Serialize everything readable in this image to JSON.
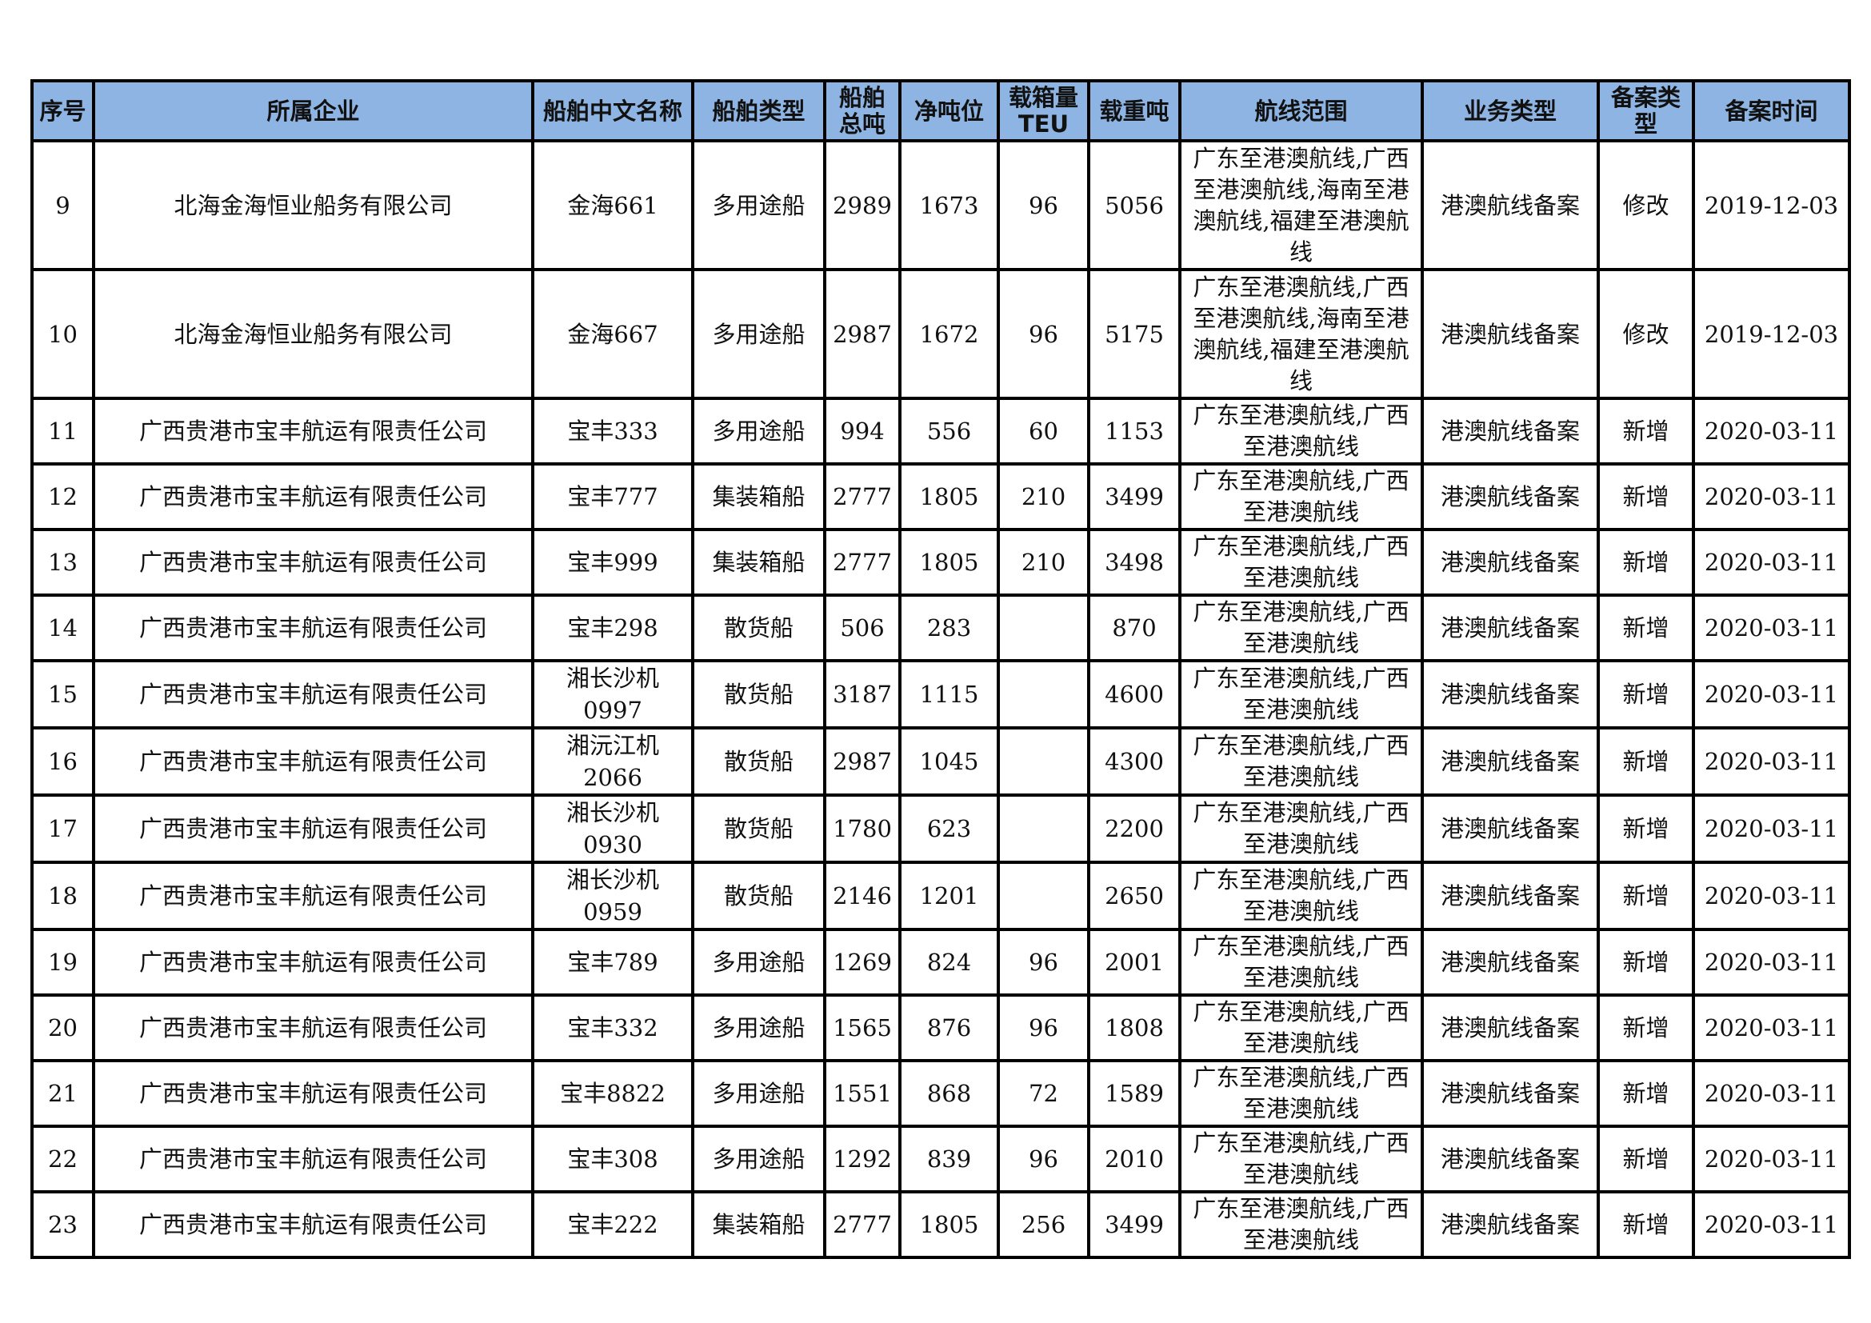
{
  "colors": {
    "header_bg": "#8db4e2",
    "border": "#000000"
  },
  "table": {
    "headers": [
      "序号",
      "所属企业",
      "船舶中文名称",
      "船舶类型",
      "船舶总吨",
      "净吨位",
      "载箱量TEU",
      "载重吨",
      "航线范围",
      "业务类型",
      "备案类型",
      "备案时间"
    ],
    "rows": [
      [
        "9",
        "北海金海恒业船务有限公司",
        "金海661",
        "多用途船",
        "2989",
        "1673",
        "96",
        "5056",
        "广东至港澳航线,广西至港澳航线,海南至港澳航线,福建至港澳航线",
        "港澳航线备案",
        "修改",
        "2019-12-03"
      ],
      [
        "10",
        "北海金海恒业船务有限公司",
        "金海667",
        "多用途船",
        "2987",
        "1672",
        "96",
        "5175",
        "广东至港澳航线,广西至港澳航线,海南至港澳航线,福建至港澳航线",
        "港澳航线备案",
        "修改",
        "2019-12-03"
      ],
      [
        "11",
        "广西贵港市宝丰航运有限责任公司",
        "宝丰333",
        "多用途船",
        "994",
        "556",
        "60",
        "1153",
        "广东至港澳航线,广西至港澳航线",
        "港澳航线备案",
        "新增",
        "2020-03-11"
      ],
      [
        "12",
        "广西贵港市宝丰航运有限责任公司",
        "宝丰777",
        "集装箱船",
        "2777",
        "1805",
        "210",
        "3499",
        "广东至港澳航线,广西至港澳航线",
        "港澳航线备案",
        "新增",
        "2020-03-11"
      ],
      [
        "13",
        "广西贵港市宝丰航运有限责任公司",
        "宝丰999",
        "集装箱船",
        "2777",
        "1805",
        "210",
        "3498",
        "广东至港澳航线,广西至港澳航线",
        "港澳航线备案",
        "新增",
        "2020-03-11"
      ],
      [
        "14",
        "广西贵港市宝丰航运有限责任公司",
        "宝丰298",
        "散货船",
        "506",
        "283",
        "",
        "870",
        "广东至港澳航线,广西至港澳航线",
        "港澳航线备案",
        "新增",
        "2020-03-11"
      ],
      [
        "15",
        "广西贵港市宝丰航运有限责任公司",
        "湘长沙机0997",
        "散货船",
        "3187",
        "1115",
        "",
        "4600",
        "广东至港澳航线,广西至港澳航线",
        "港澳航线备案",
        "新增",
        "2020-03-11"
      ],
      [
        "16",
        "广西贵港市宝丰航运有限责任公司",
        "湘沅江机2066",
        "散货船",
        "2987",
        "1045",
        "",
        "4300",
        "广东至港澳航线,广西至港澳航线",
        "港澳航线备案",
        "新增",
        "2020-03-11"
      ],
      [
        "17",
        "广西贵港市宝丰航运有限责任公司",
        "湘长沙机0930",
        "散货船",
        "1780",
        "623",
        "",
        "2200",
        "广东至港澳航线,广西至港澳航线",
        "港澳航线备案",
        "新增",
        "2020-03-11"
      ],
      [
        "18",
        "广西贵港市宝丰航运有限责任公司",
        "湘长沙机0959",
        "散货船",
        "2146",
        "1201",
        "",
        "2650",
        "广东至港澳航线,广西至港澳航线",
        "港澳航线备案",
        "新增",
        "2020-03-11"
      ],
      [
        "19",
        "广西贵港市宝丰航运有限责任公司",
        "宝丰789",
        "多用途船",
        "1269",
        "824",
        "96",
        "2001",
        "广东至港澳航线,广西至港澳航线",
        "港澳航线备案",
        "新增",
        "2020-03-11"
      ],
      [
        "20",
        "广西贵港市宝丰航运有限责任公司",
        "宝丰332",
        "多用途船",
        "1565",
        "876",
        "96",
        "1808",
        "广东至港澳航线,广西至港澳航线",
        "港澳航线备案",
        "新增",
        "2020-03-11"
      ],
      [
        "21",
        "广西贵港市宝丰航运有限责任公司",
        "宝丰8822",
        "多用途船",
        "1551",
        "868",
        "72",
        "1589",
        "广东至港澳航线,广西至港澳航线",
        "港澳航线备案",
        "新增",
        "2020-03-11"
      ],
      [
        "22",
        "广西贵港市宝丰航运有限责任公司",
        "宝丰308",
        "多用途船",
        "1292",
        "839",
        "96",
        "2010",
        "广东至港澳航线,广西至港澳航线",
        "港澳航线备案",
        "新增",
        "2020-03-11"
      ],
      [
        "23",
        "广西贵港市宝丰航运有限责任公司",
        "宝丰222",
        "集装箱船",
        "2777",
        "1805",
        "256",
        "3499",
        "广东至港澳航线,广西至港澳航线",
        "港澳航线备案",
        "新增",
        "2020-03-11"
      ]
    ]
  }
}
